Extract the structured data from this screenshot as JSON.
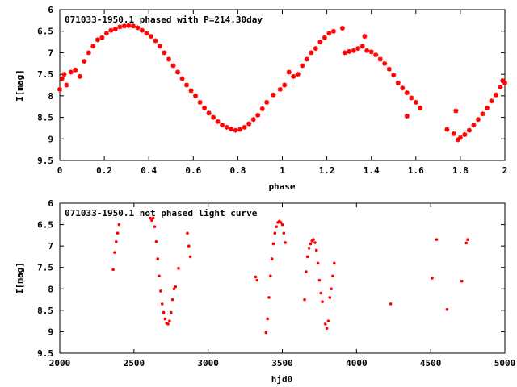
{
  "chart_data": [
    {
      "type": "scatter",
      "title": "071033-1950.1 phased with P=214.30day",
      "xlabel": "phase",
      "ylabel": "I[mag]",
      "xlim": [
        0,
        2
      ],
      "ylim": [
        6,
        9.5
      ],
      "y_inverted": true,
      "xticks": [
        0,
        0.2,
        0.4,
        0.6,
        0.8,
        1,
        1.2,
        1.4,
        1.6,
        1.8,
        2
      ],
      "xtick_labels": [
        "0",
        "0.2",
        "0.4",
        "0.6",
        "0.8",
        "1",
        "1.2",
        "1.4",
        "1.6",
        "1.8",
        "2"
      ],
      "yticks": [
        6,
        6.5,
        7,
        7.5,
        8,
        8.5,
        9,
        9.5
      ],
      "ytick_labels": [
        "6",
        "6.5",
        "7",
        "7.5",
        "8",
        "8.5",
        "9",
        "9.5"
      ],
      "grid": false,
      "marker": "star",
      "color": "#ff0000",
      "series": [
        {
          "points": [
            [
              0.0,
              7.85
            ],
            [
              0.01,
              7.6
            ],
            [
              0.02,
              7.5
            ],
            [
              0.03,
              7.75
            ],
            [
              0.05,
              7.45
            ],
            [
              0.07,
              7.4
            ],
            [
              0.09,
              7.55
            ],
            [
              0.11,
              7.2
            ],
            [
              0.13,
              7.0
            ],
            [
              0.15,
              6.85
            ],
            [
              0.17,
              6.7
            ],
            [
              0.19,
              6.65
            ],
            [
              0.21,
              6.55
            ],
            [
              0.23,
              6.48
            ],
            [
              0.25,
              6.45
            ],
            [
              0.27,
              6.4
            ],
            [
              0.29,
              6.38
            ],
            [
              0.31,
              6.37
            ],
            [
              0.33,
              6.38
            ],
            [
              0.35,
              6.42
            ],
            [
              0.37,
              6.48
            ],
            [
              0.39,
              6.55
            ],
            [
              0.41,
              6.62
            ],
            [
              0.43,
              6.72
            ],
            [
              0.45,
              6.85
            ],
            [
              0.47,
              7.0
            ],
            [
              0.49,
              7.15
            ],
            [
              0.51,
              7.3
            ],
            [
              0.53,
              7.45
            ],
            [
              0.55,
              7.6
            ],
            [
              0.57,
              7.75
            ],
            [
              0.59,
              7.88
            ],
            [
              0.61,
              8.0
            ],
            [
              0.63,
              8.15
            ],
            [
              0.65,
              8.28
            ],
            [
              0.67,
              8.4
            ],
            [
              0.69,
              8.5
            ],
            [
              0.71,
              8.6
            ],
            [
              0.73,
              8.68
            ],
            [
              0.75,
              8.73
            ],
            [
              0.77,
              8.77
            ],
            [
              0.79,
              8.8
            ],
            [
              0.81,
              8.78
            ],
            [
              0.83,
              8.73
            ],
            [
              0.85,
              8.65
            ],
            [
              0.87,
              8.55
            ],
            [
              0.89,
              8.45
            ],
            [
              0.91,
              8.3
            ],
            [
              0.93,
              8.15
            ],
            [
              0.96,
              7.98
            ],
            [
              0.99,
              7.85
            ],
            [
              1.01,
              7.75
            ],
            [
              1.03,
              7.45
            ],
            [
              1.05,
              7.55
            ],
            [
              1.07,
              7.5
            ],
            [
              1.09,
              7.3
            ],
            [
              1.11,
              7.15
            ],
            [
              1.13,
              7.0
            ],
            [
              1.15,
              6.9
            ],
            [
              1.17,
              6.75
            ],
            [
              1.19,
              6.65
            ],
            [
              1.21,
              6.55
            ],
            [
              1.23,
              6.5
            ],
            [
              1.27,
              6.43
            ],
            [
              1.28,
              7.0
            ],
            [
              1.3,
              6.97
            ],
            [
              1.32,
              6.95
            ],
            [
              1.34,
              6.9
            ],
            [
              1.36,
              6.85
            ],
            [
              1.37,
              6.62
            ],
            [
              1.38,
              6.95
            ],
            [
              1.4,
              6.98
            ],
            [
              1.42,
              7.05
            ],
            [
              1.44,
              7.15
            ],
            [
              1.46,
              7.25
            ],
            [
              1.48,
              7.38
            ],
            [
              1.5,
              7.52
            ],
            [
              1.52,
              7.7
            ],
            [
              1.54,
              7.82
            ],
            [
              1.56,
              7.93
            ],
            [
              1.58,
              8.05
            ],
            [
              1.6,
              8.15
            ],
            [
              1.62,
              8.28
            ],
            [
              1.56,
              8.47
            ],
            [
              1.74,
              8.78
            ],
            [
              1.77,
              8.88
            ],
            [
              1.78,
              8.35
            ],
            [
              1.79,
              9.02
            ],
            [
              1.8,
              8.97
            ],
            [
              1.82,
              8.9
            ],
            [
              1.84,
              8.8
            ],
            [
              1.86,
              8.68
            ],
            [
              1.88,
              8.55
            ],
            [
              1.9,
              8.42
            ],
            [
              1.92,
              8.28
            ],
            [
              1.94,
              8.12
            ],
            [
              1.96,
              7.98
            ],
            [
              1.98,
              7.8
            ],
            [
              1.99,
              7.65
            ],
            [
              2.0,
              7.7
            ]
          ]
        }
      ]
    },
    {
      "type": "scatter",
      "title": "071033-1950.1 not phased light curve",
      "xlabel": "hjd0",
      "ylabel": "I[mag]",
      "xlim": [
        2000,
        5000
      ],
      "ylim": [
        6,
        9.5
      ],
      "y_inverted": true,
      "xticks": [
        2000,
        2500,
        3000,
        3500,
        4000,
        4500,
        5000
      ],
      "xtick_labels": [
        "2000",
        "2500",
        "3000",
        "3500",
        "4000",
        "4500",
        "5000"
      ],
      "yticks": [
        6,
        6.5,
        7,
        7.5,
        8,
        8.5,
        9,
        9.5
      ],
      "ytick_labels": [
        "6",
        "6.5",
        "7",
        "7.5",
        "8",
        "8.5",
        "9",
        "9.5"
      ],
      "grid": false,
      "marker": "dot",
      "color": "#ff0000",
      "series": [
        {
          "points": [
            [
              2360,
              7.55
            ],
            [
              2370,
              7.15
            ],
            [
              2380,
              6.9
            ],
            [
              2390,
              6.7
            ],
            [
              2400,
              6.5
            ],
            [
              2610,
              6.35
            ],
            [
              2620,
              6.4
            ],
            [
              2630,
              6.35
            ],
            [
              2640,
              6.55
            ],
            [
              2650,
              6.9
            ],
            [
              2660,
              7.3
            ],
            [
              2670,
              7.7
            ],
            [
              2680,
              8.05
            ],
            [
              2690,
              8.35
            ],
            [
              2700,
              8.55
            ],
            [
              2710,
              8.7
            ],
            [
              2720,
              8.8
            ],
            [
              2730,
              8.82
            ],
            [
              2740,
              8.75
            ],
            [
              2750,
              8.55
            ],
            [
              2760,
              8.25
            ],
            [
              2770,
              8.0
            ],
            [
              2780,
              7.95
            ],
            [
              2800,
              7.52
            ],
            [
              2860,
              6.7
            ],
            [
              2870,
              7.0
            ],
            [
              2880,
              7.25
            ],
            [
              3320,
              7.72
            ],
            [
              3330,
              7.8
            ],
            [
              3390,
              9.02
            ],
            [
              3400,
              8.7
            ],
            [
              3410,
              8.2
            ],
            [
              3420,
              7.7
            ],
            [
              3430,
              7.3
            ],
            [
              3440,
              6.95
            ],
            [
              3450,
              6.7
            ],
            [
              3460,
              6.55
            ],
            [
              3470,
              6.45
            ],
            [
              3480,
              6.42
            ],
            [
              3490,
              6.45
            ],
            [
              3500,
              6.5
            ],
            [
              3510,
              6.7
            ],
            [
              3520,
              6.92
            ],
            [
              3650,
              8.25
            ],
            [
              3660,
              7.6
            ],
            [
              3670,
              7.25
            ],
            [
              3680,
              7.05
            ],
            [
              3690,
              6.95
            ],
            [
              3700,
              6.88
            ],
            [
              3710,
              6.85
            ],
            [
              3720,
              6.92
            ],
            [
              3730,
              7.1
            ],
            [
              3740,
              7.4
            ],
            [
              3750,
              7.8
            ],
            [
              3760,
              8.1
            ],
            [
              3770,
              8.3
            ],
            [
              3790,
              8.82
            ],
            [
              3800,
              8.92
            ],
            [
              3810,
              8.75
            ],
            [
              3820,
              8.2
            ],
            [
              3830,
              8.0
            ],
            [
              3840,
              7.7
            ],
            [
              3850,
              7.4
            ],
            [
              4230,
              8.35
            ],
            [
              4510,
              7.75
            ],
            [
              4540,
              6.85
            ],
            [
              4610,
              8.48
            ],
            [
              4710,
              7.82
            ],
            [
              4740,
              6.93
            ],
            [
              4750,
              6.85
            ]
          ]
        }
      ]
    }
  ]
}
